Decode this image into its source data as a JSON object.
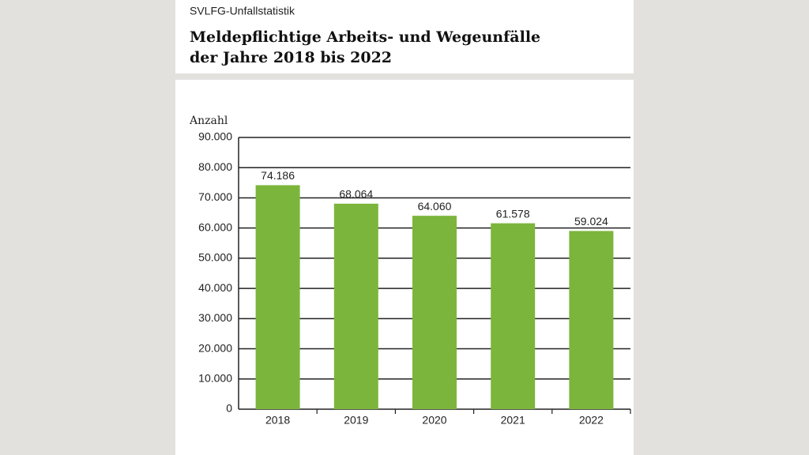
{
  "chart_data": {
    "type": "bar",
    "kicker": "SVLFG-Unfallstatistik",
    "title": [
      "Meldepflichtige Arbeits- und Wegeunfälle",
      "der Jahre 2018 bis 2022"
    ],
    "ylabel": "Anzahl",
    "categories": [
      "2018",
      "2019",
      "2020",
      "2021",
      "2022"
    ],
    "values": [
      74186,
      68064,
      64060,
      61578,
      59024
    ],
    "value_labels": [
      "74.186",
      "68.064",
      "64.060",
      "61.578",
      "59.024"
    ],
    "color": "#7cb53c",
    "ylim": [
      0,
      90000
    ],
    "yticks": [
      0,
      {
        "value": 10000,
        "label": "10.000"
      },
      {
        "value": 20000,
        "label": "20.000"
      },
      {
        "value": 30000,
        "label": "30.000"
      },
      {
        "value": 40000,
        "label": "40.000"
      },
      {
        "value": 50000,
        "label": "50.000"
      },
      {
        "value": 60000,
        "label": "60.000"
      },
      {
        "value": 70000,
        "label": "70.000"
      },
      {
        "value": 80000,
        "label": "80.000"
      },
      {
        "value": 90000,
        "label": "90.000"
      }
    ],
    "grid": true
  }
}
